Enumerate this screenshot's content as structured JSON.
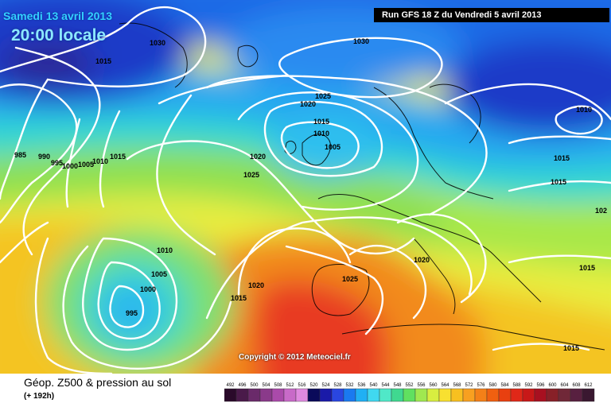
{
  "header": {
    "date": "Samedi 13 avril 2013",
    "time": "20:00 locale",
    "run": "Run GFS 18 Z du Vendredi 5 avril 2013"
  },
  "copyright": "Copyright © 2012 Meteociel.fr",
  "footer": {
    "title": "Géop. Z500 & pression au sol",
    "subtitle": "(+ 192h)"
  },
  "legend": {
    "values": [
      "492",
      "496",
      "500",
      "504",
      "508",
      "512",
      "516",
      "520",
      "524",
      "528",
      "532",
      "536",
      "540",
      "544",
      "548",
      "552",
      "556",
      "560",
      "564",
      "568",
      "572",
      "576",
      "580",
      "584",
      "588",
      "592",
      "596",
      "600",
      "604",
      "608",
      "612"
    ],
    "colors": [
      "#2a0a2a",
      "#4a1a4a",
      "#6a2a6a",
      "#8a3a8a",
      "#aa4aaa",
      "#c86ac8",
      "#e08ae0",
      "#0a0a5a",
      "#1a1aa8",
      "#2a46e0",
      "#1a7af0",
      "#20b0f4",
      "#40d8f0",
      "#50e8c8",
      "#40d890",
      "#60e060",
      "#a0e850",
      "#d8ee40",
      "#f8e030",
      "#f8c020",
      "#f8a020",
      "#f48018",
      "#f06010",
      "#e84010",
      "#e02818",
      "#c81818",
      "#a81020",
      "#882028",
      "#702838",
      "#582040",
      "#3a1830"
    ]
  },
  "pressure_labels": [
    "1030",
    "1015",
    "1030",
    "1025",
    "1020",
    "1015",
    "1010",
    "1005",
    "1010",
    "1015",
    "1015",
    "1020",
    "1025",
    "985",
    "990",
    "995",
    "1000",
    "1005",
    "1010",
    "1015",
    "1020",
    "1025",
    "1010",
    "1005",
    "1000",
    "995",
    "1020",
    "1015",
    "1015",
    "1015",
    "102"
  ]
}
